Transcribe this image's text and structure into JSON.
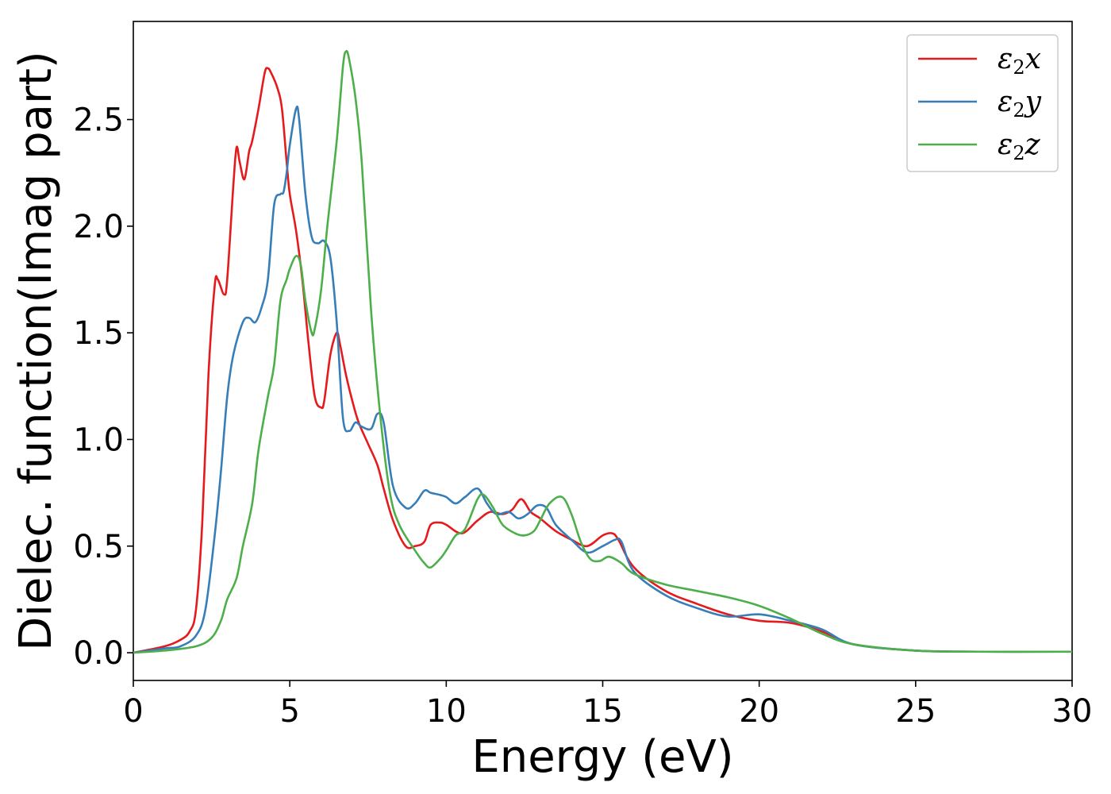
{
  "chart_data": {
    "type": "line",
    "xlabel": "Energy (eV)",
    "ylabel": "Dielec. function(Imag part)",
    "xlim": [
      0,
      30
    ],
    "ylim": [
      -0.13,
      2.96
    ],
    "xticks": [
      0,
      5,
      10,
      15,
      20,
      25,
      30
    ],
    "xtick_labels": [
      "0",
      "5",
      "10",
      "15",
      "20",
      "25",
      "30"
    ],
    "yticks": [
      0.0,
      0.5,
      1.0,
      1.5,
      2.0,
      2.5
    ],
    "ytick_labels": [
      "0.0",
      "0.5",
      "1.0",
      "1.5",
      "2.0",
      "2.5"
    ],
    "grid": false,
    "legend_position": "top-right",
    "series": [
      {
        "name": "ε2x",
        "legend_base": "ε",
        "legend_sub": "2",
        "legend_var": "x",
        "color": "#e41a1c",
        "x": [
          0,
          1,
          1.5,
          1.8,
          2.0,
          2.2,
          2.4,
          2.6,
          2.7,
          2.9,
          3.0,
          3.2,
          3.3,
          3.4,
          3.55,
          3.7,
          3.8,
          4.0,
          4.2,
          4.3,
          4.4,
          4.6,
          4.75,
          4.9,
          5.0,
          5.2,
          5.4,
          5.6,
          5.8,
          6.0,
          6.1,
          6.3,
          6.5,
          6.6,
          6.8,
          7.0,
          7.2,
          7.5,
          7.8,
          8.0,
          8.3,
          8.7,
          9.0,
          9.3,
          9.5,
          9.8,
          10.0,
          10.5,
          11.0,
          11.4,
          11.8,
          12.1,
          12.4,
          12.7,
          13.0,
          13.5,
          14.0,
          14.5,
          15.0,
          15.3,
          15.5,
          16.0,
          17.0,
          18.0,
          19.0,
          20.0,
          21.0,
          22.0,
          23.0,
          25.0,
          27.0,
          30.0
        ],
        "y": [
          0.0,
          0.03,
          0.06,
          0.1,
          0.2,
          0.6,
          1.3,
          1.72,
          1.75,
          1.68,
          1.75,
          2.2,
          2.37,
          2.3,
          2.22,
          2.35,
          2.4,
          2.55,
          2.72,
          2.74,
          2.72,
          2.65,
          2.55,
          2.3,
          2.15,
          1.98,
          1.75,
          1.45,
          1.2,
          1.15,
          1.18,
          1.4,
          1.5,
          1.45,
          1.3,
          1.18,
          1.08,
          0.98,
          0.88,
          0.77,
          0.62,
          0.5,
          0.5,
          0.52,
          0.6,
          0.61,
          0.6,
          0.56,
          0.62,
          0.66,
          0.65,
          0.67,
          0.72,
          0.66,
          0.63,
          0.57,
          0.53,
          0.5,
          0.55,
          0.56,
          0.53,
          0.4,
          0.29,
          0.23,
          0.18,
          0.15,
          0.14,
          0.1,
          0.04,
          0.01,
          0.005,
          0.005
        ]
      },
      {
        "name": "ε2y",
        "legend_base": "ε",
        "legend_sub": "2",
        "legend_var": "y",
        "color": "#377eb8",
        "x": [
          0,
          1,
          1.5,
          2.0,
          2.3,
          2.6,
          2.8,
          3.0,
          3.2,
          3.5,
          3.7,
          3.9,
          4.1,
          4.3,
          4.5,
          4.7,
          4.8,
          4.9,
          5.0,
          5.2,
          5.3,
          5.5,
          5.7,
          5.9,
          6.1,
          6.3,
          6.5,
          6.7,
          6.9,
          7.1,
          7.3,
          7.6,
          7.8,
          8.0,
          8.3,
          8.7,
          9.0,
          9.3,
          9.5,
          9.8,
          10.0,
          10.3,
          10.6,
          11.0,
          11.3,
          11.6,
          12.0,
          12.3,
          12.6,
          12.9,
          13.2,
          13.5,
          14.0,
          14.5,
          15.0,
          15.4,
          15.6,
          16.0,
          17.0,
          18.0,
          19.0,
          20.0,
          21.0,
          22.0,
          23.0,
          25.0,
          27.0,
          30.0
        ],
        "y": [
          0.0,
          0.02,
          0.03,
          0.08,
          0.2,
          0.55,
          0.85,
          1.2,
          1.4,
          1.55,
          1.57,
          1.55,
          1.62,
          1.75,
          2.1,
          2.15,
          2.16,
          2.25,
          2.38,
          2.55,
          2.5,
          2.15,
          1.95,
          1.92,
          1.93,
          1.85,
          1.55,
          1.1,
          1.04,
          1.08,
          1.06,
          1.05,
          1.12,
          1.08,
          0.78,
          0.68,
          0.7,
          0.76,
          0.75,
          0.74,
          0.73,
          0.7,
          0.73,
          0.77,
          0.7,
          0.65,
          0.66,
          0.63,
          0.65,
          0.69,
          0.68,
          0.6,
          0.53,
          0.47,
          0.5,
          0.53,
          0.52,
          0.38,
          0.27,
          0.21,
          0.17,
          0.18,
          0.15,
          0.11,
          0.04,
          0.01,
          0.005,
          0.005
        ]
      },
      {
        "name": "ε2z",
        "legend_base": "ε",
        "legend_sub": "2",
        "legend_var": "z",
        "color": "#4daf4a",
        "x": [
          0,
          1,
          2.0,
          2.5,
          2.8,
          3.0,
          3.3,
          3.5,
          3.8,
          4.0,
          4.3,
          4.5,
          4.7,
          4.9,
          5.0,
          5.2,
          5.35,
          5.5,
          5.7,
          5.8,
          6.0,
          6.2,
          6.5,
          6.7,
          6.8,
          6.9,
          7.1,
          7.3,
          7.6,
          7.9,
          8.2,
          8.5,
          9.0,
          9.3,
          9.5,
          9.8,
          10.0,
          10.3,
          10.6,
          11.0,
          11.2,
          11.5,
          11.8,
          12.2,
          12.5,
          12.8,
          13.0,
          13.3,
          13.7,
          14.0,
          14.3,
          14.6,
          14.9,
          15.2,
          15.6,
          16.0,
          17.0,
          18.0,
          19.0,
          20.0,
          21.0,
          22.0,
          23.0,
          25.0,
          27.0,
          30.0
        ],
        "y": [
          0.0,
          0.01,
          0.03,
          0.07,
          0.15,
          0.25,
          0.35,
          0.5,
          0.7,
          0.95,
          1.2,
          1.35,
          1.65,
          1.75,
          1.8,
          1.86,
          1.82,
          1.65,
          1.5,
          1.52,
          1.7,
          2.0,
          2.4,
          2.75,
          2.82,
          2.78,
          2.6,
          2.3,
          1.6,
          1.1,
          0.75,
          0.6,
          0.48,
          0.42,
          0.4,
          0.44,
          0.48,
          0.55,
          0.58,
          0.72,
          0.74,
          0.68,
          0.6,
          0.56,
          0.55,
          0.57,
          0.62,
          0.7,
          0.73,
          0.65,
          0.52,
          0.44,
          0.43,
          0.45,
          0.42,
          0.37,
          0.32,
          0.29,
          0.26,
          0.22,
          0.16,
          0.09,
          0.04,
          0.01,
          0.005,
          0.005
        ]
      }
    ]
  }
}
